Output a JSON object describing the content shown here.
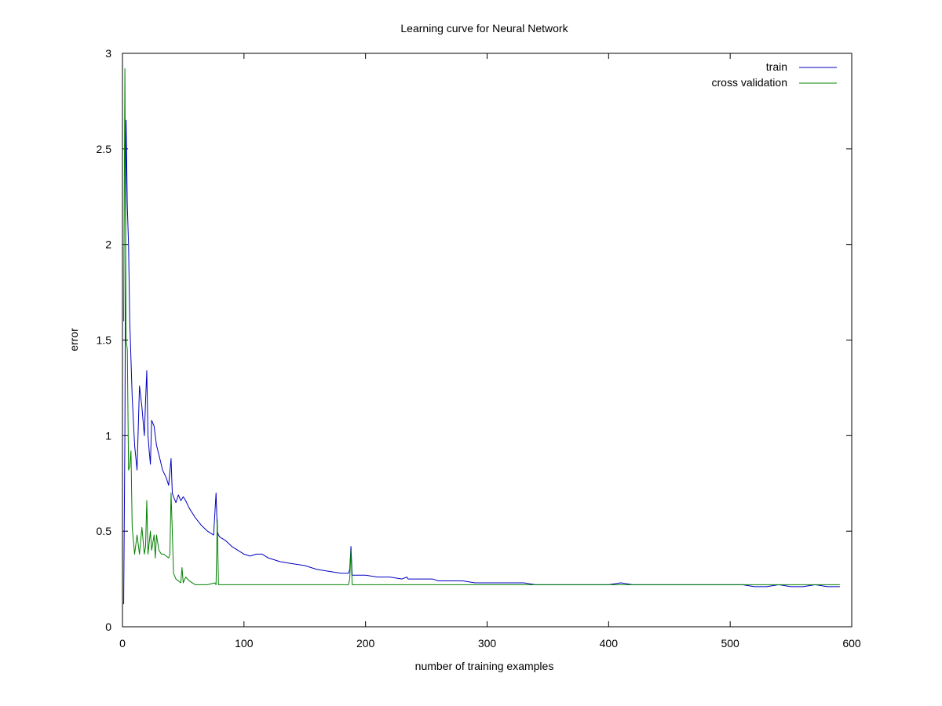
{
  "chart_data": {
    "type": "line",
    "title": "Learning curve for Neural Network",
    "xlabel": "number of training examples",
    "ylabel": "error",
    "xlim": [
      0,
      600
    ],
    "ylim": [
      0,
      3
    ],
    "x_ticks": [
      0,
      100,
      200,
      300,
      400,
      500,
      600
    ],
    "y_ticks": [
      0,
      0.5,
      1,
      1.5,
      2,
      2.5,
      3
    ],
    "y_tick_labels": [
      "0",
      "0.5",
      "1",
      "1.5",
      "2",
      "2.5",
      "3"
    ],
    "x_tick_labels": [
      "0",
      "100",
      "200",
      "300",
      "400",
      "500",
      "600"
    ],
    "grid": false,
    "legend_position": "top-right",
    "series": [
      {
        "name": "train",
        "color": "#0000c0",
        "x": [
          1,
          2,
          3,
          4,
          5,
          6,
          7,
          8,
          10,
          12,
          14,
          16,
          18,
          19,
          20,
          21,
          22,
          23,
          24,
          26,
          28,
          30,
          33,
          36,
          38,
          40,
          41,
          42,
          44,
          46,
          48,
          50,
          52,
          55,
          60,
          65,
          70,
          75,
          77,
          78,
          79,
          80,
          85,
          90,
          95,
          100,
          105,
          110,
          115,
          120,
          130,
          140,
          150,
          160,
          170,
          180,
          186,
          187,
          188,
          189,
          190,
          200,
          210,
          220,
          230,
          234,
          235,
          240,
          250,
          255,
          260,
          270,
          280,
          290,
          300,
          310,
          320,
          330,
          340,
          350,
          360,
          370,
          380,
          390,
          400,
          410,
          420,
          430,
          440,
          450,
          460,
          470,
          480,
          490,
          500,
          510,
          520,
          530,
          540,
          550,
          560,
          570,
          580,
          590
        ],
        "y": [
          0.12,
          1.0,
          2.65,
          2.2,
          2.0,
          1.6,
          1.4,
          1.2,
          0.95,
          0.82,
          1.26,
          1.15,
          1.0,
          1.18,
          1.34,
          1.0,
          0.92,
          0.85,
          1.08,
          1.05,
          0.95,
          0.9,
          0.82,
          0.78,
          0.74,
          0.88,
          0.7,
          0.68,
          0.65,
          0.69,
          0.66,
          0.68,
          0.66,
          0.62,
          0.57,
          0.53,
          0.5,
          0.48,
          0.7,
          0.5,
          0.48,
          0.47,
          0.45,
          0.42,
          0.4,
          0.38,
          0.37,
          0.38,
          0.38,
          0.36,
          0.34,
          0.33,
          0.32,
          0.3,
          0.29,
          0.28,
          0.28,
          0.3,
          0.42,
          0.27,
          0.27,
          0.27,
          0.26,
          0.26,
          0.25,
          0.26,
          0.25,
          0.25,
          0.25,
          0.25,
          0.24,
          0.24,
          0.24,
          0.23,
          0.23,
          0.23,
          0.23,
          0.23,
          0.22,
          0.22,
          0.22,
          0.22,
          0.22,
          0.22,
          0.22,
          0.23,
          0.22,
          0.22,
          0.22,
          0.22,
          0.22,
          0.22,
          0.22,
          0.22,
          0.22,
          0.22,
          0.21,
          0.21,
          0.22,
          0.21,
          0.21,
          0.22,
          0.21,
          0.21
        ]
      },
      {
        "name": "cross validation",
        "color": "#008000",
        "x": [
          1,
          2,
          3,
          4,
          5,
          6,
          7,
          8,
          10,
          12,
          14,
          16,
          18,
          19,
          20,
          21,
          22,
          23,
          24,
          26,
          27,
          28,
          30,
          32,
          34,
          36,
          38,
          39,
          40,
          41,
          42,
          44,
          46,
          48,
          49,
          50,
          52,
          55,
          60,
          70,
          76,
          77,
          78,
          79,
          80,
          85,
          90,
          100,
          120,
          140,
          160,
          180,
          186,
          187,
          188,
          189,
          190,
          200,
          220,
          240,
          260,
          280,
          300,
          320,
          340,
          360,
          380,
          400,
          420,
          440,
          460,
          480,
          500,
          520,
          540,
          560,
          580,
          590
        ],
        "y": [
          1.6,
          2.92,
          1.5,
          1.45,
          0.82,
          0.84,
          0.92,
          0.52,
          0.38,
          0.48,
          0.38,
          0.52,
          0.38,
          0.42,
          0.66,
          0.38,
          0.44,
          0.5,
          0.4,
          0.48,
          0.36,
          0.48,
          0.4,
          0.38,
          0.38,
          0.37,
          0.36,
          0.38,
          0.7,
          0.5,
          0.28,
          0.25,
          0.24,
          0.23,
          0.31,
          0.23,
          0.26,
          0.24,
          0.22,
          0.22,
          0.23,
          0.22,
          0.56,
          0.22,
          0.22,
          0.22,
          0.22,
          0.22,
          0.22,
          0.22,
          0.22,
          0.22,
          0.22,
          0.25,
          0.4,
          0.22,
          0.22,
          0.22,
          0.22,
          0.22,
          0.22,
          0.22,
          0.22,
          0.22,
          0.22,
          0.22,
          0.22,
          0.22,
          0.22,
          0.22,
          0.22,
          0.22,
          0.22,
          0.22,
          0.22,
          0.22,
          0.22,
          0.22
        ]
      }
    ]
  }
}
